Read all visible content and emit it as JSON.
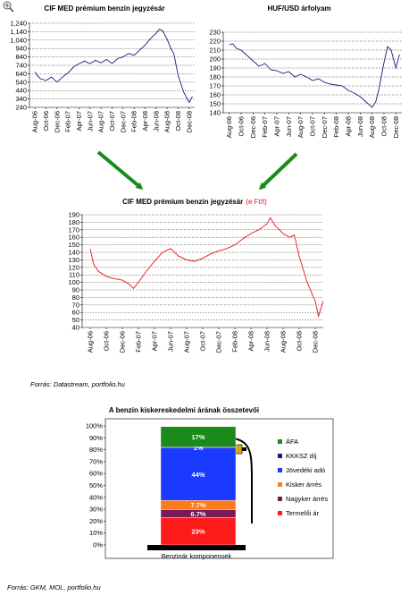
{
  "zoom_icon": "zoom-in-icon",
  "chart_data": [
    {
      "id": "c1",
      "type": "line",
      "title": "CIF MED prémium benzin jegyzésár",
      "color": "#1a1a7a",
      "ylim": [
        240,
        1240
      ],
      "yticks": [
        240,
        340,
        440,
        540,
        640,
        740,
        840,
        940,
        1040,
        1140,
        1240
      ],
      "ytick_labels": [
        "240",
        "340",
        "440",
        "540",
        "640",
        "740",
        "840",
        "940",
        "1,040",
        "1,140",
        "1,240"
      ],
      "xlabels": [
        "Aug-06",
        "Oct-06",
        "Dec-06",
        "Feb-07",
        "Apr-07",
        "Jun-07",
        "Aug-07",
        "Oct-07",
        "Dec-07",
        "Feb-08",
        "Apr-08",
        "Jun-08",
        "Aug-08",
        "Oct-08",
        "Dec-08"
      ],
      "x": [
        0,
        0.2,
        0.5,
        1.0,
        1.5,
        2.0,
        2.5,
        3.0,
        3.5,
        4.0,
        4.5,
        5.0,
        5.5,
        6.0,
        6.5,
        7.0,
        7.5,
        8.0,
        8.5,
        9.0,
        9.5,
        10.0,
        10.5,
        11.0,
        11.3,
        11.6,
        12.0,
        12.3,
        12.6,
        13.0,
        13.5,
        14.0,
        14.3
      ],
      "values": [
        660,
        620,
        580,
        560,
        600,
        540,
        600,
        650,
        720,
        760,
        790,
        760,
        800,
        770,
        810,
        760,
        820,
        840,
        880,
        860,
        920,
        980,
        1060,
        1120,
        1170,
        1150,
        1050,
        950,
        880,
        620,
        420,
        300,
        370
      ]
    },
    {
      "id": "c2",
      "type": "line",
      "title": "HUF/USD árfolyam",
      "color": "#1a1a7a",
      "ylim": [
        140,
        230
      ],
      "yticks": [
        140,
        150,
        160,
        170,
        180,
        190,
        200,
        210,
        220,
        230
      ],
      "ytick_labels": [
        "140",
        "150",
        "160",
        "170",
        "180",
        "190",
        "200",
        "210",
        "220",
        "230"
      ],
      "xlabels": [
        "Aug-06",
        "Oct-06",
        "Dec-06",
        "Feb-07",
        "Apr-07",
        "Jun-07",
        "Aug-07",
        "Oct-07",
        "Dec-07",
        "Feb-08",
        "Apr-08",
        "Jun-08",
        "Aug-08",
        "Oct-08",
        "Dec-08"
      ],
      "x": [
        0,
        0.3,
        0.6,
        1.0,
        1.5,
        2.0,
        2.5,
        3.0,
        3.5,
        4.0,
        4.5,
        5.0,
        5.5,
        6.0,
        6.5,
        7.0,
        7.5,
        8.0,
        8.5,
        9.0,
        9.5,
        10.0,
        10.5,
        11.0,
        11.5,
        12.0,
        12.3,
        12.6,
        12.8,
        13.0,
        13.3,
        13.6,
        14.0,
        14.3
      ],
      "values": [
        216,
        217,
        212,
        210,
        204,
        198,
        192,
        195,
        188,
        187,
        184,
        186,
        180,
        183,
        180,
        176,
        178,
        174,
        172,
        171,
        170,
        165,
        162,
        158,
        152,
        146,
        152,
        168,
        182,
        196,
        214,
        210,
        190,
        205
      ]
    },
    {
      "id": "c3",
      "type": "line",
      "title": "CIF MED prémium benzin jegyzésár",
      "title_unit": "(e Ft/t)",
      "color": "#e8141a",
      "unit_color": "#e8141a",
      "ylim": [
        40,
        190
      ],
      "yticks": [
        40,
        50,
        60,
        70,
        80,
        90,
        100,
        110,
        120,
        130,
        140,
        150,
        160,
        170,
        180,
        190
      ],
      "ytick_labels": [
        "40",
        "50",
        "60",
        "70",
        "80",
        "90",
        "100",
        "110",
        "120",
        "130",
        "140",
        "150",
        "160",
        "170",
        "180",
        "190"
      ],
      "xlabels": [
        "Aug-06",
        "Oct-06",
        "Dec-06",
        "Feb-07",
        "Apr-07",
        "Jun-07",
        "Aug-07",
        "Oct-07",
        "Dec-07",
        "Feb-08",
        "Apr-08",
        "Jun-08",
        "Aug-08",
        "Oct-08",
        "Dec-08"
      ],
      "x": [
        0,
        0.2,
        0.5,
        1.0,
        1.5,
        2.0,
        2.4,
        2.7,
        3.0,
        3.5,
        4.0,
        4.5,
        5.0,
        5.5,
        6.0,
        6.5,
        7.0,
        7.5,
        8.0,
        8.5,
        9.0,
        9.5,
        10.0,
        10.5,
        11.0,
        11.2,
        11.5,
        12.0,
        12.4,
        12.7,
        13.0,
        13.5,
        14.0,
        14.2,
        14.5
      ],
      "values": [
        145,
        125,
        115,
        108,
        105,
        103,
        98,
        92,
        100,
        115,
        128,
        140,
        145,
        135,
        130,
        128,
        132,
        138,
        142,
        145,
        150,
        158,
        165,
        170,
        178,
        186,
        176,
        165,
        160,
        163,
        135,
        100,
        75,
        55,
        75
      ]
    },
    {
      "id": "c4",
      "type": "bar",
      "stacked": true,
      "title": "A benzin kiskereskedelmi árának összetevői",
      "category": "Benzinár komponensek",
      "ylim": [
        0,
        100
      ],
      "yticks": [
        0,
        10,
        20,
        30,
        40,
        50,
        60,
        70,
        80,
        90,
        100
      ],
      "ytick_labels": [
        "0%",
        "10%",
        "20%",
        "30%",
        "40%",
        "50%",
        "60%",
        "70%",
        "80%",
        "90%",
        "100%"
      ],
      "segments": [
        {
          "name": "Termelői ár",
          "value": 23,
          "label": "23%",
          "color": "#ff1a1a"
        },
        {
          "name": "Nagyker árrés",
          "value": 6.7,
          "label": "6.7%",
          "color": "#7a1a5a"
        },
        {
          "name": "Kisker árrés",
          "value": 7.7,
          "label": "7.7%",
          "color": "#ff7a1a"
        },
        {
          "name": "Jövedéki adó",
          "value": 44,
          "label": "44%",
          "color": "#1a3aff"
        },
        {
          "name": "KKKSZ díj",
          "value": 1,
          "label": "1%",
          "color": "#1a1a7a"
        },
        {
          "name": "ÁFA",
          "value": 17,
          "label": "17%",
          "color": "#1a8a1a"
        }
      ],
      "legend_order": [
        "ÁFA",
        "KKKSZ díj",
        "Jövedéki adó",
        "Kisker árrés",
        "Nagyker árrés",
        "Termelői ár"
      ]
    }
  ],
  "sources": {
    "top": "Forrás: Datastream, portfolio.hu",
    "bottom": "Forrás: GKM, MOL, portfolio.hu"
  }
}
